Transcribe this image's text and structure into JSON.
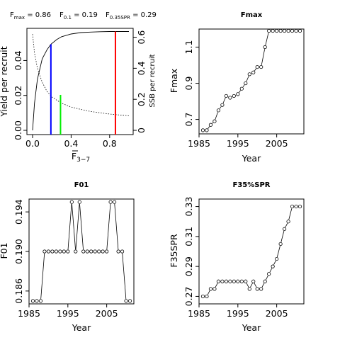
{
  "chart_data": [
    {
      "type": "line",
      "title": "",
      "header": {
        "fmax_label": "F",
        "fmax_sub": "max",
        "fmax_value": " = 0.86",
        "f01_label": "F",
        "f01_sub": "0.1",
        "f01_value": " = 0.19",
        "f35_label": "F",
        "f35_sub": "0.35SPR",
        "f35_value": " = 0.29"
      },
      "xlabel_main": "F",
      "xlabel_sub": "3−7",
      "ylabel": "Yield per recruit",
      "ylabel_right": "SSB per recruit",
      "xlim": [
        0,
        1
      ],
      "ylim": [
        0,
        0.056
      ],
      "ylim_right": [
        0,
        0.63
      ],
      "x_ticks": [
        0.0,
        0.4,
        0.8
      ],
      "x_tick_labels": [
        "0.0",
        "0.4",
        "0.8"
      ],
      "y_ticks": [
        0.0,
        0.02,
        0.04
      ],
      "y_tick_labels": [
        "0.00",
        "0.02",
        "0.04"
      ],
      "y_right_ticks": [
        0.0,
        0.2,
        0.4,
        0.6
      ],
      "y_right_tick_labels": [
        "0",
        "0.2",
        "0.4",
        "0.6"
      ],
      "ypr_curve": {
        "x": [
          0.0,
          0.02,
          0.05,
          0.1,
          0.15,
          0.19,
          0.25,
          0.3,
          0.4,
          0.5,
          0.6,
          0.7,
          0.8,
          0.86,
          0.9,
          1.0
        ],
        "y": [
          0.0,
          0.0155,
          0.0292,
          0.041,
          0.0462,
          0.0493,
          0.052,
          0.0536,
          0.0552,
          0.056,
          0.0563,
          0.0565,
          0.0566,
          0.0566,
          0.0566,
          0.0566
        ]
      },
      "spr_curve": {
        "x": [
          0.0,
          0.02,
          0.05,
          0.1,
          0.15,
          0.2,
          0.3,
          0.4,
          0.5,
          0.6,
          0.7,
          0.8,
          0.9,
          1.0
        ],
        "y": [
          0.62,
          0.5,
          0.4,
          0.31,
          0.25,
          0.215,
          0.175,
          0.15,
          0.135,
          0.122,
          0.113,
          0.105,
          0.099,
          0.094
        ]
      },
      "reference_lines": [
        {
          "name": "F0.1",
          "x": 0.19,
          "color": "#0000ff"
        },
        {
          "name": "F0.35SPR",
          "x": 0.29,
          "color": "#00ee00"
        },
        {
          "name": "Fmax",
          "x": 0.86,
          "color": "#ff0000"
        }
      ]
    },
    {
      "type": "line",
      "title": "Fmax",
      "xlabel": "Year",
      "ylabel": "Fmax",
      "xlim": [
        1985,
        2012
      ],
      "ylim": [
        0.62,
        1.2
      ],
      "x_ticks": [
        1985,
        1995,
        2005
      ],
      "x_tick_labels": [
        "1985",
        "1995",
        "2005"
      ],
      "y_ticks": [
        0.7,
        0.9,
        1.1
      ],
      "y_tick_labels": [
        "0.7",
        "0.9",
        "1.1"
      ],
      "x": [
        1986,
        1987,
        1988,
        1989,
        1990,
        1991,
        1992,
        1993,
        1994,
        1995,
        1996,
        1997,
        1998,
        1999,
        2000,
        2001,
        2002,
        2003,
        2004,
        2005,
        2006,
        2007,
        2008,
        2009,
        2010,
        2011
      ],
      "y": [
        0.64,
        0.64,
        0.67,
        0.69,
        0.75,
        0.78,
        0.83,
        0.82,
        0.83,
        0.84,
        0.87,
        0.9,
        0.95,
        0.96,
        0.99,
        0.99,
        1.1,
        1.19,
        1.19,
        1.19,
        1.19,
        1.19,
        1.19,
        1.19,
        1.19,
        1.19
      ]
    },
    {
      "type": "line",
      "title": "F01",
      "xlabel": "Year",
      "ylabel": "F01",
      "xlim": [
        1985,
        2012
      ],
      "ylim": [
        0.1847,
        0.1953
      ],
      "x_ticks": [
        1985,
        1995,
        2005
      ],
      "x_tick_labels": [
        "1985",
        "1995",
        "2005"
      ],
      "y_ticks": [
        0.186,
        0.19,
        0.194
      ],
      "y_tick_labels": [
        "0.186",
        "0.190",
        "0.194"
      ],
      "x": [
        1986,
        1987,
        1988,
        1989,
        1990,
        1991,
        1992,
        1993,
        1994,
        1995,
        1996,
        1997,
        1998,
        1999,
        2000,
        2001,
        2002,
        2003,
        2004,
        2005,
        2006,
        2007,
        2008,
        2009,
        2010,
        2011
      ],
      "y": [
        0.185,
        0.185,
        0.185,
        0.19,
        0.19,
        0.19,
        0.19,
        0.19,
        0.19,
        0.19,
        0.195,
        0.19,
        0.195,
        0.19,
        0.19,
        0.19,
        0.19,
        0.19,
        0.19,
        0.19,
        0.195,
        0.195,
        0.19,
        0.19,
        0.185,
        0.185
      ]
    },
    {
      "type": "line",
      "title": "F35%SPR",
      "xlabel": "Year",
      "ylabel": "F35SPR",
      "xlim": [
        1985,
        2012
      ],
      "ylim": [
        0.265,
        0.335
      ],
      "x_ticks": [
        1985,
        1995,
        2005
      ],
      "x_tick_labels": [
        "1985",
        "1995",
        "2005"
      ],
      "y_ticks": [
        0.27,
        0.29,
        0.31,
        0.33
      ],
      "y_tick_labels": [
        "0.27",
        "0.29",
        "0.31",
        "0.33"
      ],
      "x": [
        1986,
        1987,
        1988,
        1989,
        1990,
        1991,
        1992,
        1993,
        1994,
        1995,
        1996,
        1997,
        1998,
        1999,
        2000,
        2001,
        2002,
        2003,
        2004,
        2005,
        2006,
        2007,
        2008,
        2009,
        2010,
        2011
      ],
      "y": [
        0.27,
        0.27,
        0.275,
        0.275,
        0.28,
        0.28,
        0.28,
        0.28,
        0.28,
        0.28,
        0.28,
        0.28,
        0.275,
        0.28,
        0.275,
        0.275,
        0.28,
        0.285,
        0.29,
        0.295,
        0.305,
        0.315,
        0.32,
        0.33,
        0.33,
        0.33
      ]
    }
  ]
}
